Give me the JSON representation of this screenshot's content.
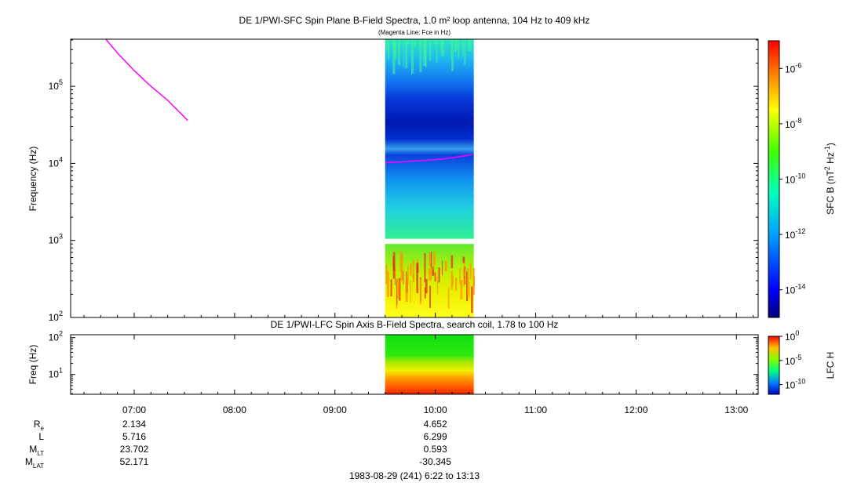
{
  "chart_data": [
    {
      "type": "heatmap",
      "title": "DE 1/PWI-SFC  Spin Plane B-Field Spectra, 1.0 m² loop antenna, 104 Hz to 409 kHz",
      "subtitle": "(Magenta Line: Fce in Hz)",
      "ylabel": "Frequency (Hz)",
      "yscale": "log",
      "ylim": [
        100,
        409000
      ],
      "yticks": [
        {
          "value": 100,
          "base": "10",
          "exp": "2"
        },
        {
          "value": 1000,
          "base": "10",
          "exp": "3"
        },
        {
          "value": 10000,
          "base": "10",
          "exp": "4"
        },
        {
          "value": 100000,
          "base": "10",
          "exp": "5"
        }
      ],
      "data_time_range": [
        "09:30",
        "10:23"
      ],
      "data_gap_hz": [
        900,
        1050
      ],
      "fce_line_color": "#ff00ff",
      "fce_segments": [
        [
          [
            "06:43",
            409000
          ],
          [
            "06:50",
            270000
          ],
          [
            "07:00",
            160000
          ],
          [
            "07:10",
            100000
          ],
          [
            "07:20",
            66000
          ],
          [
            "07:32",
            36000
          ]
        ],
        [
          [
            "09:30",
            10200
          ],
          [
            "09:45",
            10600
          ],
          [
            "10:00",
            11200
          ],
          [
            "10:10",
            11800
          ],
          [
            "10:22",
            13000
          ]
        ]
      ],
      "colorbar": {
        "label": "SFC B (nT",
        "label_exp1": "2",
        "label_mid": " Hz",
        "label_exp2": "-1",
        "label_end": ")",
        "scale": "log",
        "range": [
          "1e-15",
          "1e-5"
        ],
        "ticks": [
          {
            "exp_value": -6,
            "base": "10",
            "exp": "-6"
          },
          {
            "exp_value": -8,
            "base": "10",
            "exp": "-8"
          },
          {
            "exp_value": -10,
            "base": "10",
            "exp": "-10"
          },
          {
            "exp_value": -12,
            "base": "10",
            "exp": "-12"
          },
          {
            "exp_value": -14,
            "base": "10",
            "exp": "-14"
          }
        ]
      }
    },
    {
      "type": "heatmap",
      "title": "DE 1/PWI-LFC  Spin Axis B-Field Spectra, search coil, 1.78 to 100 Hz",
      "ylabel": "Freq (Hz)",
      "yscale": "log",
      "ylim": [
        2.9,
        120
      ],
      "yticks": [
        {
          "value": 10,
          "base": "10",
          "exp": "1"
        },
        {
          "value": 100,
          "base": "10",
          "exp": "2"
        }
      ],
      "data_time_range": [
        "09:30",
        "10:23"
      ],
      "colorbar": {
        "label": "LFC H",
        "scale": "log",
        "range": [
          "1e-12",
          "1"
        ],
        "ticks": [
          {
            "exp_value": 0,
            "base": "10",
            "exp": "0"
          },
          {
            "exp_value": -5,
            "base": "10",
            "exp": "-5"
          },
          {
            "exp_value": -10,
            "base": "10",
            "exp": "-10"
          }
        ]
      }
    }
  ],
  "time_axis": {
    "start": "06:22",
    "end": "13:13",
    "ticks": [
      "07:00",
      "08:00",
      "09:00",
      "10:00",
      "11:00",
      "12:00",
      "13:00"
    ]
  },
  "ephemeris": {
    "labels": [
      {
        "main": "R",
        "sub": "e"
      },
      {
        "main": "L",
        "sub": ""
      },
      {
        "main": "M",
        "sub": "LT"
      },
      {
        "main": "M",
        "sub": "LAT"
      }
    ],
    "columns": [
      {
        "time": "07:00",
        "values": [
          "2.134",
          "5.716",
          "23.702",
          "52.171"
        ]
      },
      {
        "time": "10:00",
        "values": [
          "4.652",
          "6.299",
          "0.593",
          "-30.345"
        ]
      }
    ]
  },
  "footer": "1983-08-29 (241) 6:22 to 13:13"
}
